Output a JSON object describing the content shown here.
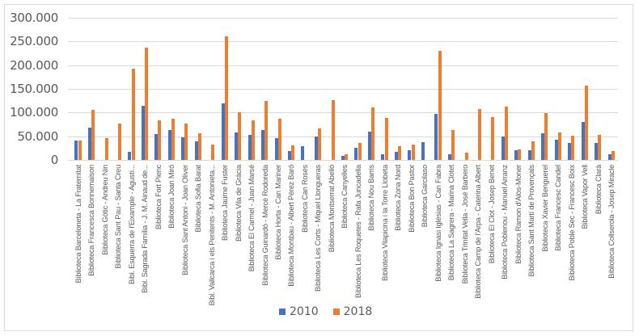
{
  "chart_data": {
    "type": "bar",
    "title": "",
    "xlabel": "",
    "ylabel": "",
    "ylim": [
      0,
      300000
    ],
    "yticks": [
      "0",
      "50.000",
      "100.000",
      "150.000",
      "200.000",
      "250.000",
      "300.000"
    ],
    "grid": true,
    "legend_position": "bottom",
    "categories": [
      "Biblioteca Barceloneta - La Fraternitat",
      "Biblioteca Francesca Bonnemaison",
      "Biblioteca Gòtic - Andreu Nin",
      "Biblioteca Sant Pau - Santa Creu",
      "Bibl. Esquerra de l'Eixample - Agustí...",
      "Bibl. Sagrada Família - J. M. Ainaud de...",
      "Biblioteca Fort Pienc",
      "Biblioteca Joan Miró",
      "Biblioteca Sant Antoni - Joan Oliver",
      "Biblioteca Sofia Barat",
      "Bibl. Vallcarca i els Penitents - M. Antonieta...",
      "Biblioteca Jaume Fuster",
      "Biblioteca Vila de Gràcia",
      "Biblioteca El Carmel - Juan Marsé",
      "Biblioteca Guinardó - Mercè Rodoreda",
      "Biblioteca Horta - Can Mariner",
      "Biblioteca Montbau - Albert Pérez Baró",
      "Biblioteca Can Rosés",
      "Biblioteca Les Corts - Miquel Llongueras",
      "Biblioteca Montserrat Abelló",
      "Biblioteca Canyelles",
      "Biblioteca Les Roquetes - Rafa Juncadella",
      "Biblioteca Nou Barris",
      "Biblioteca Vilapicina i la Torre Llobeta",
      "Biblioteca Zona Nord",
      "Biblioteca Bon Pastor",
      "Biblioteca Garcilaso",
      "Biblioteca Ignasi Iglésias - Can Fabra",
      "Biblioteca La Sagrera - Marina Clotet",
      "Biblioteca Trinitat Vella - José Barbero",
      "Biblioteca Camp de l'Arpa - Caterina Albert",
      "Biblioteca El Clot - Josep Benet",
      "Biblioteca Poblenou - Manuel Arranz",
      "Biblioteca Ramon d'Alòs-Moner",
      "Biblioteca Sant Martí de Provençals",
      "Biblioteca Xavier Benguerel",
      "Biblioteca Francesc Candel",
      "Biblioteca Poble Sec - Francesc Boix",
      "Biblioteca Vapor Vell",
      "Biblioteca Clarà",
      "Biblioteca Collserola - Josep Miracle"
    ],
    "series": [
      {
        "name": "2010",
        "color": "#4472c4",
        "values": [
          41000,
          68000,
          0,
          0,
          17000,
          115000,
          55000,
          64000,
          48000,
          39000,
          0,
          120000,
          58000,
          54000,
          63000,
          47000,
          19000,
          30000,
          50000,
          0,
          8500,
          25500,
          59500,
          12000,
          17500,
          21000,
          38000,
          97000,
          12500,
          0,
          0,
          0,
          49000,
          21000,
          21000,
          56000,
          42500,
          37000,
          80000,
          37000,
          13000
        ]
      },
      {
        "name": "2018",
        "color": "#ed7d31",
        "values": [
          41000,
          105000,
          46000,
          76500,
          192000,
          236000,
          84000,
          87000,
          76500,
          56000,
          32000,
          261000,
          101000,
          83000,
          125000,
          87000,
          31000,
          0,
          67000,
          126000,
          12000,
          36000,
          111500,
          89000,
          30000,
          32000,
          0,
          230500,
          64000,
          15000,
          107000,
          90000,
          112500,
          22000,
          39000,
          99000,
          58000,
          51500,
          156000,
          54000,
          20000
        ]
      }
    ]
  },
  "legend": {
    "items": [
      {
        "label": "2010",
        "color": "#4472c4"
      },
      {
        "label": "2018",
        "color": "#ed7d31"
      }
    ]
  }
}
